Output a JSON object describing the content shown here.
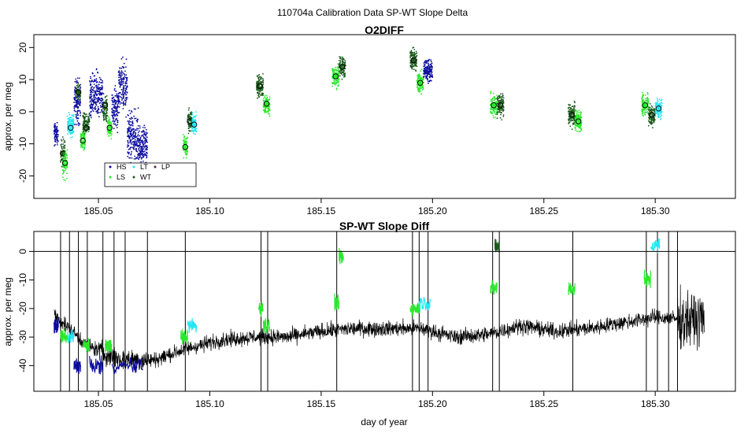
{
  "figure_title": "110704a   Calibration Data SP-WT Slope Delta",
  "colors": {
    "HS": "#0a0aa0",
    "LS": "#2be82b",
    "LT": "#20e8f0",
    "WT": "#1a5a1a",
    "LP": "#4a2a4a",
    "trace": "#000000",
    "means_edge": "#000000"
  },
  "chart_data": [
    {
      "id": "o2diff",
      "type": "scatter",
      "title": "O2DIFF",
      "xlabel": "",
      "ylabel": "approx. per meg",
      "xlim": [
        185.021,
        185.336
      ],
      "ylim": [
        -27,
        24
      ],
      "x_ticks": [
        185.05,
        185.1,
        185.15,
        185.2,
        185.25,
        185.3
      ],
      "x_tick_labels": [
        "185.05",
        "185.10",
        "185.15",
        "185.20",
        "185.25",
        "185.30"
      ],
      "y_ticks": [
        -20,
        -10,
        0,
        10,
        20
      ],
      "y_tick_labels": [
        "-20",
        "-10",
        "0",
        "10",
        "20"
      ],
      "grid": false,
      "legend": {
        "placement": "bottom-left",
        "entries": [
          {
            "label": "HS",
            "color_key": "HS"
          },
          {
            "label": "LS",
            "color_key": "LS"
          },
          {
            "label": "LT",
            "color_key": "LT"
          },
          {
            "label": "WT",
            "color_key": "WT"
          },
          {
            "label": "LP",
            "color_key": "LP"
          }
        ]
      },
      "clusters": [
        {
          "x": [
            185.03,
            185.032
          ],
          "color_key": "HS",
          "center": -7,
          "spread": 3,
          "mean": null
        },
        {
          "x": [
            185.033,
            185.035
          ],
          "color_key": "WT",
          "center": -13,
          "spread": 4,
          "mean": -13
        },
        {
          "x": [
            185.034,
            185.036
          ],
          "color_key": "LS",
          "center": -16,
          "spread": 4,
          "mean": -16
        },
        {
          "x": [
            185.036,
            185.039
          ],
          "color_key": "LT",
          "center": -4,
          "spread": 3,
          "mean": -5
        },
        {
          "x": [
            185.039,
            185.042
          ],
          "color_key": "HS",
          "center": 3,
          "spread": 6,
          "mean": null
        },
        {
          "x": [
            185.04,
            185.042
          ],
          "color_key": "WT",
          "center": 6,
          "spread": 2,
          "mean": 6
        },
        {
          "x": [
            185.042,
            185.044
          ],
          "color_key": "LS",
          "center": -9,
          "spread": 3,
          "mean": -9
        },
        {
          "x": [
            185.043,
            185.046
          ],
          "color_key": "WT",
          "center": -4,
          "spread": 3,
          "mean": -5
        },
        {
          "x": [
            185.046,
            185.052
          ],
          "color_key": "HS",
          "center": 5,
          "spread": 6,
          "mean": null
        },
        {
          "x": [
            185.052,
            185.054
          ],
          "color_key": "WT",
          "center": 1,
          "spread": 4,
          "mean": 2
        },
        {
          "x": [
            185.054,
            185.056
          ],
          "color_key": "LS",
          "center": -5,
          "spread": 3,
          "mean": -5
        },
        {
          "x": [
            185.056,
            185.059
          ],
          "color_key": "HS",
          "center": 1,
          "spread": 6,
          "mean": null
        },
        {
          "x": [
            185.059,
            185.063
          ],
          "color_key": "HS",
          "center": 8,
          "spread": 7,
          "mean": null
        },
        {
          "x": [
            185.063,
            185.068
          ],
          "color_key": "HS",
          "center": -8,
          "spread": 7,
          "mean": null
        },
        {
          "x": [
            185.068,
            185.072
          ],
          "color_key": "HS",
          "center": -10,
          "spread": 5,
          "mean": null
        },
        {
          "x": [
            185.088,
            185.09
          ],
          "color_key": "LS",
          "center": -11,
          "spread": 3,
          "mean": -11
        },
        {
          "x": [
            185.09,
            185.092
          ],
          "color_key": "WT",
          "center": -3,
          "spread": 3,
          "mean": -3
        },
        {
          "x": [
            185.092,
            185.094
          ],
          "color_key": "LT",
          "center": -4,
          "spread": 3,
          "mean": -4
        },
        {
          "x": [
            185.121,
            185.124
          ],
          "color_key": "WT",
          "center": 8,
          "spread": 3,
          "mean": 8
        },
        {
          "x": [
            185.124,
            185.127
          ],
          "color_key": "LS",
          "center": 2,
          "spread": 3,
          "mean": 2.5
        },
        {
          "x": [
            185.155,
            185.158
          ],
          "color_key": "LS",
          "center": 11,
          "spread": 3,
          "mean": 11
        },
        {
          "x": [
            185.158,
            185.161
          ],
          "color_key": "WT",
          "center": 14,
          "spread": 3,
          "mean": 14
        },
        {
          "x": [
            185.19,
            185.193
          ],
          "color_key": "WT",
          "center": 16,
          "spread": 3,
          "mean": 16
        },
        {
          "x": [
            185.193,
            185.196
          ],
          "color_key": "LS",
          "center": 9,
          "spread": 3,
          "mean": 9
        },
        {
          "x": [
            185.196,
            185.2
          ],
          "color_key": "HS",
          "center": 13,
          "spread": 3,
          "mean": null
        },
        {
          "x": [
            185.226,
            185.229
          ],
          "color_key": "LS",
          "center": 2,
          "spread": 3,
          "mean": 2
        },
        {
          "x": [
            185.229,
            185.232
          ],
          "color_key": "WT",
          "center": 2,
          "spread": 3,
          "mean": 2
        },
        {
          "x": [
            185.261,
            185.264
          ],
          "color_key": "WT",
          "center": -1,
          "spread": 3,
          "mean": -1
        },
        {
          "x": [
            185.264,
            185.267
          ],
          "color_key": "LS",
          "center": -3,
          "spread": 3,
          "mean": -3
        },
        {
          "x": [
            185.294,
            185.297
          ],
          "color_key": "LS",
          "center": 2,
          "spread": 3,
          "mean": 2
        },
        {
          "x": [
            185.297,
            185.3
          ],
          "color_key": "WT",
          "center": -1,
          "spread": 3,
          "mean": -1
        },
        {
          "x": [
            185.3,
            185.303
          ],
          "color_key": "LT",
          "center": 1,
          "spread": 3,
          "mean": 1
        }
      ]
    },
    {
      "id": "spwt",
      "type": "line",
      "title": "SP-WT Slope Diff",
      "xlabel": "day of year",
      "ylabel": "approx. per meg",
      "xlim": [
        185.021,
        185.336
      ],
      "ylim": [
        -49,
        7
      ],
      "x_ticks": [
        185.05,
        185.1,
        185.15,
        185.2,
        185.25,
        185.3
      ],
      "x_tick_labels": [
        "185.05",
        "185.10",
        "185.15",
        "185.20",
        "185.25",
        "185.30"
      ],
      "y_ticks": [
        -40,
        -30,
        -20,
        -10,
        0
      ],
      "y_tick_labels": [
        "-40",
        "-30",
        "-20",
        "-10",
        "0"
      ],
      "hline": 0,
      "grid": false,
      "baseline": {
        "x": [
          185.03,
          185.045,
          185.06,
          185.075,
          185.09,
          185.105,
          185.12,
          185.135,
          185.15,
          185.165,
          185.18,
          185.195,
          185.21,
          185.225,
          185.24,
          185.255,
          185.27,
          185.285,
          185.3,
          185.315,
          185.322
        ],
        "y": [
          -22,
          -33,
          -38,
          -38,
          -34,
          -31,
          -30,
          -30,
          -28,
          -27,
          -27,
          -27,
          -30,
          -29,
          -26,
          -28,
          -27,
          -25,
          -23,
          -24,
          -24
        ]
      },
      "spikes_x": [
        185.033,
        185.037,
        185.041,
        185.045,
        185.052,
        185.057,
        185.062,
        185.072,
        185.089,
        185.123,
        185.126,
        185.157,
        185.191,
        185.194,
        185.198,
        185.227,
        185.23,
        185.263,
        185.296,
        185.301,
        185.306,
        185.31
      ],
      "colored_segments": [
        {
          "x": [
            185.03,
            185.032
          ],
          "color_key": "HS",
          "center": -26
        },
        {
          "x": [
            185.033,
            185.036
          ],
          "color_key": "LS",
          "center": -30
        },
        {
          "x": [
            185.036,
            185.039
          ],
          "color_key": "LT",
          "center": -30
        },
        {
          "x": [
            185.039,
            185.042
          ],
          "color_key": "HS",
          "center": -40
        },
        {
          "x": [
            185.043,
            185.046
          ],
          "color_key": "LS",
          "center": -33
        },
        {
          "x": [
            185.046,
            185.052
          ],
          "color_key": "HS",
          "center": -40
        },
        {
          "x": [
            185.053,
            185.056
          ],
          "color_key": "LS",
          "center": -33
        },
        {
          "x": [
            185.056,
            185.07
          ],
          "color_key": "HS",
          "center": -40
        },
        {
          "x": [
            185.087,
            185.09
          ],
          "color_key": "LS",
          "center": -30
        },
        {
          "x": [
            185.09,
            185.094
          ],
          "color_key": "LT",
          "center": -26
        },
        {
          "x": [
            185.122,
            185.124
          ],
          "color_key": "LS",
          "center": -20
        },
        {
          "x": [
            185.124,
            185.127
          ],
          "color_key": "LS",
          "center": -26
        },
        {
          "x": [
            185.156,
            185.158
          ],
          "color_key": "LS",
          "center": -18
        },
        {
          "x": [
            185.158,
            185.16
          ],
          "color_key": "LS",
          "center": -2
        },
        {
          "x": [
            185.19,
            185.194
          ],
          "color_key": "LS",
          "center": -20
        },
        {
          "x": [
            185.194,
            185.199
          ],
          "color_key": "LT",
          "center": -18
        },
        {
          "x": [
            185.226,
            185.229
          ],
          "color_key": "LS",
          "center": -13
        },
        {
          "x": [
            185.228,
            185.23
          ],
          "color_key": "WT",
          "center": 2
        },
        {
          "x": [
            185.261,
            185.264
          ],
          "color_key": "LS",
          "center": -13
        },
        {
          "x": [
            185.295,
            185.298
          ],
          "color_key": "LS",
          "center": -10
        },
        {
          "x": [
            185.298,
            185.302
          ],
          "color_key": "LT",
          "center": 2
        }
      ]
    }
  ]
}
